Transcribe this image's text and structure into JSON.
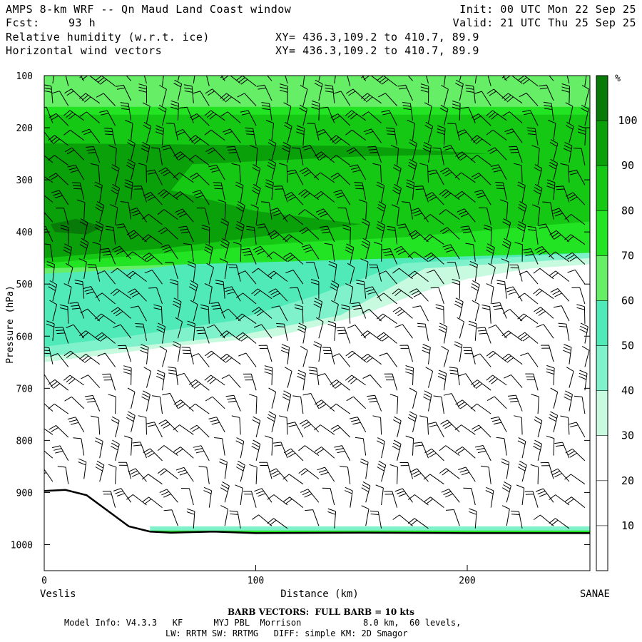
{
  "header": {
    "title": "AMPS 8-km WRF -- Qn Maud Land Coast window",
    "fcst_label": "Fcst:",
    "fcst_value": "93 h",
    "init": "Init: 00 UTC Mon 22 Sep 25",
    "valid": "Valid: 21 UTC Thu 25 Sep 25",
    "field1": "Relative humidity (w.r.t. ice)",
    "field2": "Horizontal wind vectors",
    "xy1": "XY= 436.3,109.2 to 410.7, 89.9",
    "xy2": "XY= 436.3,109.2 to 410.7, 89.9"
  },
  "chart_data": {
    "type": "heatmap",
    "title": "Relative humidity (w.r.t. ice) and horizontal wind vectors cross-section",
    "xlabel": "Distance (km)",
    "ylabel": "Pressure (hPa)",
    "xlim": [
      0,
      258
    ],
    "ylim": [
      1050,
      100
    ],
    "x_ticks": [
      0,
      100,
      200
    ],
    "y_ticks": [
      100,
      200,
      300,
      400,
      500,
      600,
      700,
      800,
      900,
      1000
    ],
    "x_start_label": "Veslis",
    "x_end_label": "SANAE",
    "colorbar": {
      "unit": "%",
      "levels": [
        0,
        10,
        20,
        30,
        40,
        50,
        60,
        70,
        80,
        90,
        100,
        110
      ],
      "tick_labels": [
        "10",
        "20",
        "30",
        "40",
        "50",
        "60",
        "70",
        "80",
        "90",
        "100"
      ],
      "colors": [
        "#ffffff",
        "#ffffff",
        "#ffffff",
        "#c8fae0",
        "#7ff2cc",
        "#4feab8",
        "#66ee66",
        "#22e422",
        "#14c814",
        "#0aa00a",
        "#087a08",
        "#3d6015"
      ]
    },
    "regions": [
      {
        "rh_min": 30,
        "rh_max": 40,
        "x": [
          0,
          20,
          60,
          110,
          150,
          175,
          200,
          230,
          258,
          258,
          0
        ],
        "p": [
          650,
          640,
          620,
          600,
          560,
          520,
          490,
          470,
          462,
          100,
          100
        ]
      },
      {
        "rh_min": 40,
        "rh_max": 50,
        "x": [
          0,
          30,
          90,
          140,
          180,
          258,
          258,
          0
        ],
        "p": [
          640,
          625,
          600,
          560,
          470,
          450,
          100,
          100
        ]
      },
      {
        "rh_min": 50,
        "rh_max": 60,
        "x": [
          0,
          40,
          90,
          130,
          170,
          258,
          258,
          0
        ],
        "p": [
          620,
          600,
          570,
          520,
          460,
          440,
          100,
          100
        ]
      },
      {
        "rh_min": 60,
        "rh_max": 70,
        "x": [
          0,
          50,
          110,
          130,
          258,
          258,
          0
        ],
        "p": [
          480,
          470,
          440,
          400,
          400,
          100,
          100
        ]
      },
      {
        "rh_min": 70,
        "rh_max": 80,
        "x": [
          0,
          258,
          258,
          0
        ],
        "p": [
          470,
          440,
          160,
          160
        ]
      },
      {
        "rh_min": 80,
        "rh_max": 90,
        "x": [
          0,
          60,
          120,
          170,
          258,
          258,
          0
        ],
        "p": [
          460,
          440,
          420,
          410,
          380,
          175,
          175
        ]
      },
      {
        "rh_min": 90,
        "rh_max": 100,
        "x": [
          0,
          60,
          110,
          150,
          100,
          60,
          70,
          150,
          210,
          150,
          0
        ],
        "p": [
          450,
          430,
          405,
          385,
          360,
          320,
          270,
          255,
          250,
          235,
          230
        ]
      },
      {
        "rh_min": 100,
        "rh_max": 110,
        "x": [
          3,
          15,
          28,
          20,
          5
        ],
        "p": [
          385,
          375,
          390,
          405,
          400
        ]
      }
    ],
    "near_surface_band": {
      "rh_min": 30,
      "rh_max": 80,
      "p_top": 965,
      "p_bottom": 985,
      "x_from": 50,
      "x_to": 258
    },
    "terrain": {
      "x": [
        0,
        10,
        20,
        30,
        40,
        50,
        60,
        80,
        100,
        150,
        200,
        258
      ],
      "p": [
        897,
        895,
        905,
        935,
        965,
        975,
        977,
        975,
        978,
        977,
        978,
        978
      ]
    },
    "wind_barbs": {
      "unit": "kts",
      "full_barb": 10,
      "spacing_km": 7.4,
      "levels_hPa": [
        100,
        1000
      ]
    }
  },
  "footer": {
    "barb_note": "BARB VECTORS:  FULL BARB = 10 kts",
    "model_info": "Model Info: V4.3.3   KF      MYJ PBL  Morrison            8.0 km,  60 levels,",
    "model_info2": "LW: RRTM SW: RRTMG   DIFF: simple KM: 2D Smagor"
  }
}
